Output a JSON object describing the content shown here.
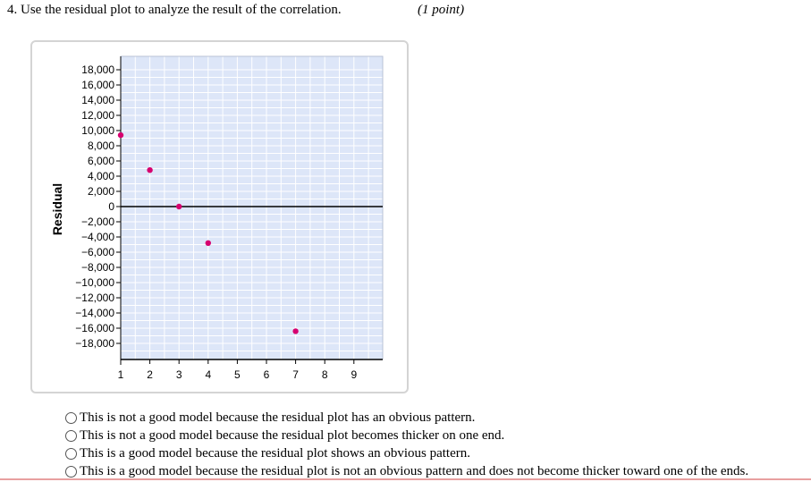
{
  "question": {
    "header": "4.  Use the residual plot to analyze the result of the correlation.",
    "points": "(1 point)"
  },
  "chart_data": {
    "type": "scatter",
    "title": "",
    "xlabel": "",
    "ylabel": "Residual",
    "xlim": [
      1,
      10
    ],
    "ylim": [
      -19000,
      19000
    ],
    "x_ticks": [
      1,
      2,
      3,
      4,
      5,
      6,
      7,
      8,
      9
    ],
    "x_tick_labels": [
      "1",
      "2",
      "3",
      "4",
      "5",
      "6",
      "7",
      "8",
      "9"
    ],
    "y_ticks": [
      18000,
      16000,
      14000,
      12000,
      10000,
      8000,
      6000,
      4000,
      2000,
      0,
      -2000,
      -4000,
      -6000,
      -8000,
      -10000,
      -12000,
      -14000,
      -16000,
      -18000
    ],
    "y_tick_labels": [
      "18,000",
      "16,000",
      "14,000",
      "12,000",
      "10,000",
      "8,000",
      "6,000",
      "4,000",
      "2,000",
      "0",
      "−2,000",
      "−4,000",
      "−6,000",
      "−8,000",
      "−10,000",
      "−12,000",
      "−14,000",
      "−16,000",
      "−18,000"
    ],
    "grid": true,
    "points": [
      {
        "x": 1,
        "y": 9400
      },
      {
        "x": 2,
        "y": 4800
      },
      {
        "x": 3,
        "y": 0
      },
      {
        "x": 4,
        "y": -4800
      },
      {
        "x": 7,
        "y": -16400
      }
    ],
    "colors": {
      "background": "#dde6f8",
      "grid": "#ffffff",
      "point": "#d6006f",
      "axis": "#000000"
    }
  },
  "choices": [
    {
      "label": "This is not a good model because the residual plot has an obvious pattern."
    },
    {
      "label": "This is not a good model because the residual plot becomes thicker on one end."
    },
    {
      "label": "This is a good model because the residual plot shows an obvious pattern."
    },
    {
      "label": "This is a good model because the residual plot is not an obvious pattern and does not become thicker toward one of the ends."
    }
  ]
}
